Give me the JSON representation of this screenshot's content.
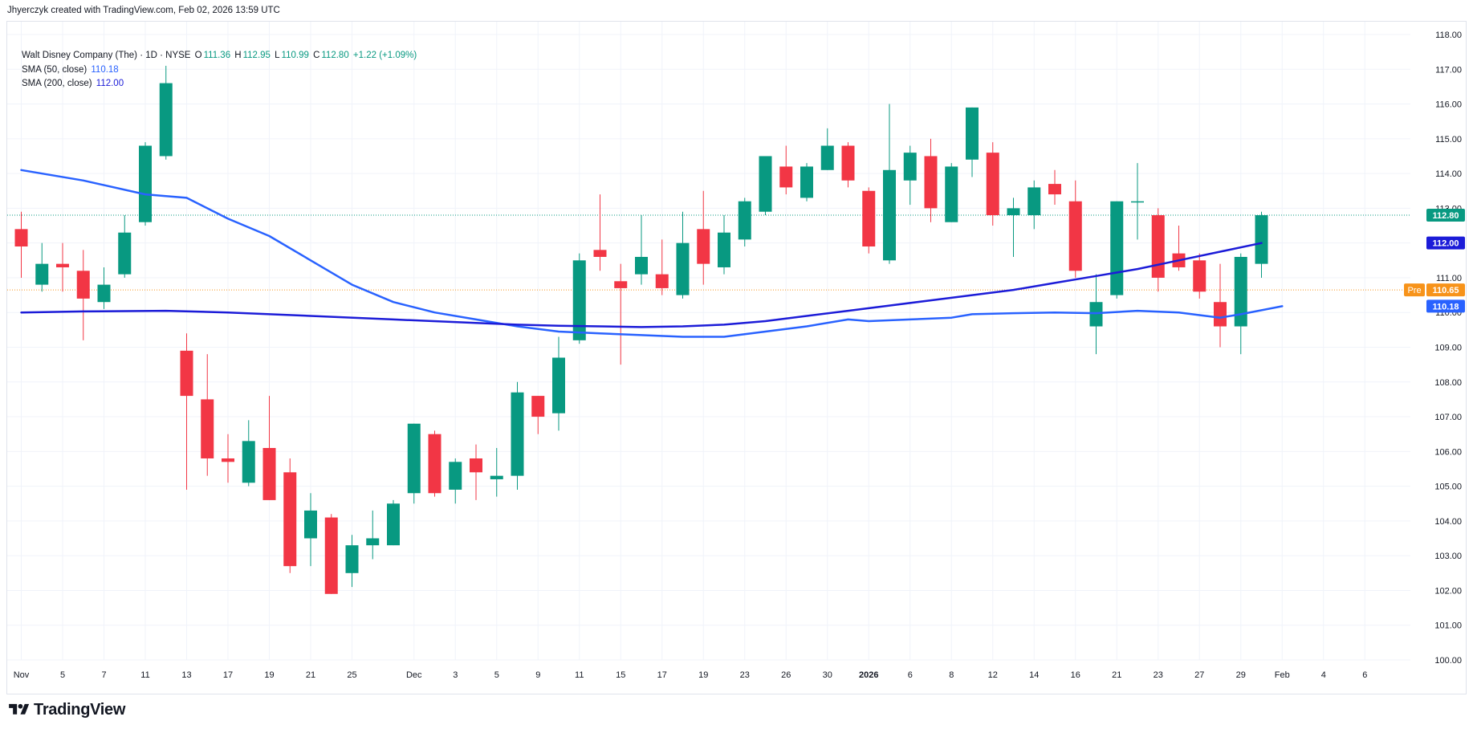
{
  "attribution": "Jhyerczyk created with TradingView.com, Feb 02, 2026 13:59 UTC",
  "legend": {
    "symbol": "Walt Disney Company (The) · 1D · NYSE",
    "o_label": "O",
    "o_value": "111.36",
    "h_label": "H",
    "h_value": "112.95",
    "l_label": "L",
    "l_value": "110.99",
    "c_label": "C",
    "c_value": "112.80",
    "change": "+1.22 (+1.09%)",
    "sma50_label": "SMA (50, close)",
    "sma50_value": "110.18",
    "sma200_label": "SMA (200, close)",
    "sma200_value": "112.00"
  },
  "logo_text": "TradingView",
  "colors": {
    "up": "#089981",
    "down": "#f23645",
    "sma50": "#2962ff",
    "sma200": "#1c1cd8",
    "pre": "#f7931a",
    "grid": "#f0f3fa",
    "axis_text": "#131722"
  },
  "chart_data": {
    "type": "candlestick",
    "ylim": [
      100,
      118
    ],
    "y_ticks": [
      "100.00",
      "101.00",
      "102.00",
      "103.00",
      "104.00",
      "105.00",
      "106.00",
      "107.00",
      "108.00",
      "109.00",
      "110.00",
      "111.00",
      "112.00",
      "113.00",
      "114.00",
      "115.00",
      "116.00",
      "117.00",
      "118.00"
    ],
    "x_tick_labels": [
      {
        "label": "Nov",
        "i": 0,
        "bold": false
      },
      {
        "label": "5",
        "i": 2,
        "bold": false
      },
      {
        "label": "7",
        "i": 4,
        "bold": false
      },
      {
        "label": "11",
        "i": 6,
        "bold": false
      },
      {
        "label": "13",
        "i": 8,
        "bold": false
      },
      {
        "label": "17",
        "i": 10,
        "bold": false
      },
      {
        "label": "19",
        "i": 12,
        "bold": false
      },
      {
        "label": "21",
        "i": 14,
        "bold": false
      },
      {
        "label": "25",
        "i": 16,
        "bold": false
      },
      {
        "label": "Dec",
        "i": 19,
        "bold": false
      },
      {
        "label": "3",
        "i": 21,
        "bold": false
      },
      {
        "label": "5",
        "i": 23,
        "bold": false
      },
      {
        "label": "9",
        "i": 25,
        "bold": false
      },
      {
        "label": "11",
        "i": 27,
        "bold": false
      },
      {
        "label": "15",
        "i": 29,
        "bold": false
      },
      {
        "label": "17",
        "i": 31,
        "bold": false
      },
      {
        "label": "19",
        "i": 33,
        "bold": false
      },
      {
        "label": "23",
        "i": 35,
        "bold": false
      },
      {
        "label": "26",
        "i": 37,
        "bold": false
      },
      {
        "label": "30",
        "i": 39,
        "bold": false
      },
      {
        "label": "2026",
        "i": 41,
        "bold": true
      },
      {
        "label": "6",
        "i": 43,
        "bold": false
      },
      {
        "label": "8",
        "i": 45,
        "bold": false
      },
      {
        "label": "12",
        "i": 47,
        "bold": false
      },
      {
        "label": "14",
        "i": 49,
        "bold": false
      },
      {
        "label": "16",
        "i": 51,
        "bold": false
      },
      {
        "label": "21",
        "i": 53,
        "bold": false
      },
      {
        "label": "23",
        "i": 55,
        "bold": false
      },
      {
        "label": "27",
        "i": 57,
        "bold": false
      },
      {
        "label": "29",
        "i": 59,
        "bold": false
      },
      {
        "label": "Feb",
        "i": 61,
        "bold": false
      },
      {
        "label": "4",
        "i": 63,
        "bold": false
      },
      {
        "label": "6",
        "i": 65,
        "bold": false
      }
    ],
    "candles": [
      {
        "o": 112.4,
        "h": 112.9,
        "l": 111.0,
        "c": 111.9
      },
      {
        "o": 110.8,
        "h": 112.0,
        "l": 110.6,
        "c": 111.4
      },
      {
        "o": 111.4,
        "h": 112.0,
        "l": 110.6,
        "c": 111.3
      },
      {
        "o": 111.2,
        "h": 111.8,
        "l": 109.2,
        "c": 110.4
      },
      {
        "o": 110.3,
        "h": 111.3,
        "l": 110.1,
        "c": 110.8
      },
      {
        "o": 111.1,
        "h": 112.8,
        "l": 111.0,
        "c": 112.3
      },
      {
        "o": 112.6,
        "h": 114.9,
        "l": 112.5,
        "c": 114.8
      },
      {
        "o": 114.5,
        "h": 117.1,
        "l": 114.4,
        "c": 116.6
      },
      {
        "o": 108.9,
        "h": 109.4,
        "l": 104.9,
        "c": 107.6
      },
      {
        "o": 107.5,
        "h": 108.8,
        "l": 105.3,
        "c": 105.8
      },
      {
        "o": 105.8,
        "h": 106.5,
        "l": 105.1,
        "c": 105.7
      },
      {
        "o": 105.1,
        "h": 106.9,
        "l": 105.0,
        "c": 106.3
      },
      {
        "o": 106.1,
        "h": 107.6,
        "l": 104.6,
        "c": 104.6
      },
      {
        "o": 105.4,
        "h": 105.8,
        "l": 102.5,
        "c": 102.7
      },
      {
        "o": 103.5,
        "h": 104.8,
        "l": 102.7,
        "c": 104.3
      },
      {
        "o": 104.1,
        "h": 104.2,
        "l": 101.9,
        "c": 101.9
      },
      {
        "o": 102.5,
        "h": 103.6,
        "l": 102.1,
        "c": 103.3
      },
      {
        "o": 103.3,
        "h": 104.3,
        "l": 102.9,
        "c": 103.5
      },
      {
        "o": 103.3,
        "h": 104.6,
        "l": 103.3,
        "c": 104.5
      },
      {
        "o": 104.8,
        "h": 106.8,
        "l": 104.5,
        "c": 106.8
      },
      {
        "o": 106.5,
        "h": 106.6,
        "l": 104.7,
        "c": 104.8
      },
      {
        "o": 104.9,
        "h": 105.8,
        "l": 104.5,
        "c": 105.7
      },
      {
        "o": 105.8,
        "h": 106.2,
        "l": 104.6,
        "c": 105.4
      },
      {
        "o": 105.2,
        "h": 106.1,
        "l": 104.7,
        "c": 105.3
      },
      {
        "o": 105.3,
        "h": 108.0,
        "l": 104.9,
        "c": 107.7
      },
      {
        "o": 107.6,
        "h": 107.6,
        "l": 106.5,
        "c": 107.0
      },
      {
        "o": 107.1,
        "h": 109.3,
        "l": 106.6,
        "c": 108.7
      },
      {
        "o": 109.2,
        "h": 111.7,
        "l": 109.1,
        "c": 111.5
      },
      {
        "o": 111.8,
        "h": 113.4,
        "l": 111.2,
        "c": 111.6
      },
      {
        "o": 110.9,
        "h": 111.4,
        "l": 108.5,
        "c": 110.7
      },
      {
        "o": 111.1,
        "h": 112.8,
        "l": 110.8,
        "c": 111.6
      },
      {
        "o": 111.1,
        "h": 112.1,
        "l": 110.5,
        "c": 110.7
      },
      {
        "o": 110.5,
        "h": 112.9,
        "l": 110.4,
        "c": 112.0
      },
      {
        "o": 112.4,
        "h": 113.5,
        "l": 110.8,
        "c": 111.4
      },
      {
        "o": 111.3,
        "h": 112.8,
        "l": 111.1,
        "c": 112.3
      },
      {
        "o": 112.1,
        "h": 113.3,
        "l": 111.9,
        "c": 113.2
      },
      {
        "o": 112.9,
        "h": 114.5,
        "l": 112.8,
        "c": 114.5
      },
      {
        "o": 114.2,
        "h": 114.8,
        "l": 113.4,
        "c": 113.6
      },
      {
        "o": 113.3,
        "h": 114.3,
        "l": 113.2,
        "c": 114.2
      },
      {
        "o": 114.1,
        "h": 115.3,
        "l": 114.1,
        "c": 114.8
      },
      {
        "o": 114.8,
        "h": 114.9,
        "l": 113.6,
        "c": 113.8
      },
      {
        "o": 113.5,
        "h": 113.6,
        "l": 111.7,
        "c": 111.9
      },
      {
        "o": 111.5,
        "h": 116.0,
        "l": 111.4,
        "c": 114.1
      },
      {
        "o": 113.8,
        "h": 114.8,
        "l": 113.1,
        "c": 114.6
      },
      {
        "o": 114.5,
        "h": 115.0,
        "l": 112.6,
        "c": 113.0
      },
      {
        "o": 112.6,
        "h": 114.3,
        "l": 112.6,
        "c": 114.2
      },
      {
        "o": 114.4,
        "h": 115.9,
        "l": 113.9,
        "c": 115.9
      },
      {
        "o": 114.6,
        "h": 114.9,
        "l": 112.5,
        "c": 112.8
      },
      {
        "o": 112.8,
        "h": 113.3,
        "l": 111.6,
        "c": 113.0
      },
      {
        "o": 112.8,
        "h": 113.8,
        "l": 112.4,
        "c": 113.6
      },
      {
        "o": 113.7,
        "h": 114.1,
        "l": 113.1,
        "c": 113.4
      },
      {
        "o": 113.2,
        "h": 113.8,
        "l": 111.0,
        "c": 111.2
      },
      {
        "o": 109.6,
        "h": 111.1,
        "l": 108.8,
        "c": 110.3
      },
      {
        "o": 110.5,
        "h": 113.2,
        "l": 110.4,
        "c": 113.2
      },
      {
        "o": 113.2,
        "h": 114.3,
        "l": 112.1,
        "c": 113.2
      },
      {
        "o": 112.8,
        "h": 113.0,
        "l": 110.6,
        "c": 111.0
      },
      {
        "o": 111.7,
        "h": 112.5,
        "l": 111.2,
        "c": 111.3
      },
      {
        "o": 111.5,
        "h": 111.7,
        "l": 110.4,
        "c": 110.6
      },
      {
        "o": 110.3,
        "h": 111.4,
        "l": 109.0,
        "c": 109.6
      },
      {
        "o": 109.6,
        "h": 111.7,
        "l": 108.8,
        "c": 111.6
      },
      {
        "o": 111.4,
        "h": 112.9,
        "l": 111.0,
        "c": 112.8
      }
    ],
    "sma50": [
      [
        0,
        114.1
      ],
      [
        3,
        113.8
      ],
      [
        6,
        113.4
      ],
      [
        8,
        113.3
      ],
      [
        10,
        112.7
      ],
      [
        12,
        112.2
      ],
      [
        14,
        111.5
      ],
      [
        16,
        110.8
      ],
      [
        18,
        110.3
      ],
      [
        20,
        110.0
      ],
      [
        22,
        109.8
      ],
      [
        24,
        109.6
      ],
      [
        26,
        109.45
      ],
      [
        28,
        109.4
      ],
      [
        30,
        109.35
      ],
      [
        32,
        109.3
      ],
      [
        34,
        109.3
      ],
      [
        36,
        109.45
      ],
      [
        38,
        109.6
      ],
      [
        40,
        109.8
      ],
      [
        41,
        109.75
      ],
      [
        43,
        109.8
      ],
      [
        45,
        109.85
      ],
      [
        46,
        109.95
      ],
      [
        48,
        109.98
      ],
      [
        50,
        110.0
      ],
      [
        52,
        109.98
      ],
      [
        54,
        110.05
      ],
      [
        56,
        110.0
      ],
      [
        58,
        109.85
      ],
      [
        59,
        109.95
      ],
      [
        61,
        110.18
      ]
    ],
    "sma200": [
      [
        0,
        110.0
      ],
      [
        3,
        110.03
      ],
      [
        7,
        110.05
      ],
      [
        10,
        110.0
      ],
      [
        14,
        109.9
      ],
      [
        18,
        109.8
      ],
      [
        22,
        109.7
      ],
      [
        24,
        109.65
      ],
      [
        26,
        109.62
      ],
      [
        28,
        109.6
      ],
      [
        30,
        109.58
      ],
      [
        32,
        109.6
      ],
      [
        34,
        109.65
      ],
      [
        36,
        109.75
      ],
      [
        38,
        109.9
      ],
      [
        40,
        110.05
      ],
      [
        42,
        110.2
      ],
      [
        44,
        110.35
      ],
      [
        46,
        110.5
      ],
      [
        48,
        110.65
      ],
      [
        50,
        110.85
      ],
      [
        52,
        111.05
      ],
      [
        54,
        111.25
      ],
      [
        56,
        111.5
      ],
      [
        58,
        111.75
      ],
      [
        60,
        112.0
      ]
    ],
    "price_labels": [
      {
        "value": 112.8,
        "text": "112.80",
        "bg": "#089981",
        "line": "#089981"
      },
      {
        "value": 112.0,
        "text": "112.00",
        "bg": "#1c1cd8",
        "line": null
      },
      {
        "value": 110.65,
        "text": "110.65",
        "prefix": "Pre",
        "bg": "#f7931a",
        "line": "#f7931a"
      },
      {
        "value": 110.18,
        "text": "110.18",
        "bg": "#2962ff",
        "line": null
      }
    ]
  }
}
